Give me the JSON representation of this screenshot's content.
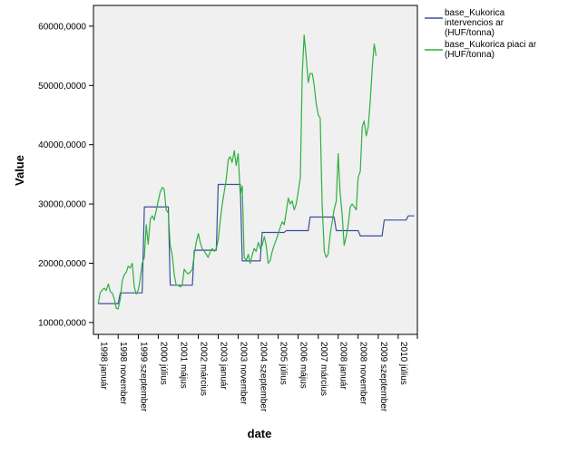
{
  "chart_data": {
    "type": "line",
    "xlabel": "date",
    "ylabel": "Value",
    "ylim": [
      8000000,
      63500000
    ],
    "y_ticks": [
      {
        "value": 10000000,
        "label": "10000,0000"
      },
      {
        "value": 20000000,
        "label": "20000,0000"
      },
      {
        "value": 30000000,
        "label": "30000,0000"
      },
      {
        "value": 40000000,
        "label": "40000,0000"
      },
      {
        "value": 50000000,
        "label": "50000,0000"
      },
      {
        "value": 60000000,
        "label": "60000,0000"
      }
    ],
    "x_ticks": [
      {
        "t": 1998.0,
        "label": "1998 január"
      },
      {
        "t": 1998.83,
        "label": "1998 november"
      },
      {
        "t": 1999.67,
        "label": "1999 szeptember"
      },
      {
        "t": 2000.5,
        "label": "2000 július"
      },
      {
        "t": 2001.33,
        "label": "2001 május"
      },
      {
        "t": 2002.17,
        "label": "2002 március"
      },
      {
        "t": 2003.0,
        "label": "2003 január"
      },
      {
        "t": 2003.83,
        "label": "2003 november"
      },
      {
        "t": 2004.67,
        "label": "2004 szeptember"
      },
      {
        "t": 2005.5,
        "label": "2005 július"
      },
      {
        "t": 2006.33,
        "label": "2006 május"
      },
      {
        "t": 2007.17,
        "label": "2007 március"
      },
      {
        "t": 2008.0,
        "label": "2008 január"
      },
      {
        "t": 2008.83,
        "label": "2008 november"
      },
      {
        "t": 2009.67,
        "label": "2009 szeptember"
      },
      {
        "t": 2010.5,
        "label": "2010 július"
      }
    ],
    "xlim_t": [
      1997.8,
      2011.3
    ],
    "extra_tick_t": 2011.3,
    "legend_position": "right",
    "series": [
      {
        "name": "base_Kukorica intervencios ar (HUF/tonna)",
        "color": "#3a4f9c",
        "step": true,
        "points": [
          [
            1998.0,
            13200000
          ],
          [
            1998.83,
            13200000
          ],
          [
            1998.92,
            15000000
          ],
          [
            1999.83,
            15000000
          ],
          [
            1999.92,
            29500000
          ],
          [
            2000.92,
            29500000
          ],
          [
            2001.0,
            16300000
          ],
          [
            2001.92,
            16300000
          ],
          [
            2002.0,
            22200000
          ],
          [
            2002.92,
            22200000
          ],
          [
            2003.0,
            33300000
          ],
          [
            2003.92,
            33300000
          ],
          [
            2004.0,
            20400000
          ],
          [
            2004.75,
            20400000
          ],
          [
            2004.83,
            25200000
          ],
          [
            2005.75,
            25200000
          ],
          [
            2005.83,
            25500000
          ],
          [
            2006.75,
            25500000
          ],
          [
            2006.83,
            27800000
          ],
          [
            2007.83,
            27800000
          ],
          [
            2007.92,
            25500000
          ],
          [
            2008.83,
            25500000
          ],
          [
            2008.92,
            24600000
          ],
          [
            2009.83,
            24600000
          ],
          [
            2009.92,
            27300000
          ],
          [
            2010.83,
            27300000
          ],
          [
            2010.92,
            28000000
          ],
          [
            2011.17,
            28000000
          ]
        ]
      },
      {
        "name": "base_Kukorica piaci ar (HUF/tonna)",
        "color": "#2db040",
        "step": false,
        "points": [
          [
            1998.0,
            13200000
          ],
          [
            1998.08,
            15000000
          ],
          [
            1998.17,
            15500000
          ],
          [
            1998.25,
            15800000
          ],
          [
            1998.33,
            15400000
          ],
          [
            1998.42,
            16500000
          ],
          [
            1998.5,
            15200000
          ],
          [
            1998.58,
            15000000
          ],
          [
            1998.67,
            14000000
          ],
          [
            1998.75,
            12400000
          ],
          [
            1998.83,
            12300000
          ],
          [
            1998.92,
            14000000
          ],
          [
            1999.0,
            17000000
          ],
          [
            1999.08,
            18000000
          ],
          [
            1999.17,
            18500000
          ],
          [
            1999.25,
            19500000
          ],
          [
            1999.33,
            19200000
          ],
          [
            1999.42,
            20000000
          ],
          [
            1999.5,
            16000000
          ],
          [
            1999.58,
            14800000
          ],
          [
            1999.67,
            15500000
          ],
          [
            1999.75,
            17500000
          ],
          [
            1999.83,
            20000000
          ],
          [
            1999.92,
            21000000
          ],
          [
            2000.0,
            26500000
          ],
          [
            2000.08,
            23200000
          ],
          [
            2000.17,
            27500000
          ],
          [
            2000.25,
            28000000
          ],
          [
            2000.33,
            27300000
          ],
          [
            2000.42,
            29000000
          ],
          [
            2000.5,
            30500000
          ],
          [
            2000.58,
            32000000
          ],
          [
            2000.67,
            32800000
          ],
          [
            2000.75,
            32500000
          ],
          [
            2000.83,
            29000000
          ],
          [
            2000.92,
            28500000
          ],
          [
            2001.0,
            23000000
          ],
          [
            2001.08,
            21500000
          ],
          [
            2001.17,
            18000000
          ],
          [
            2001.25,
            16300000
          ],
          [
            2001.33,
            16300000
          ],
          [
            2001.42,
            16000000
          ],
          [
            2001.5,
            16300000
          ],
          [
            2001.58,
            19000000
          ],
          [
            2001.67,
            18500000
          ],
          [
            2001.75,
            18200000
          ],
          [
            2001.83,
            18500000
          ],
          [
            2001.92,
            19000000
          ],
          [
            2002.0,
            21500000
          ],
          [
            2002.08,
            23500000
          ],
          [
            2002.17,
            25000000
          ],
          [
            2002.25,
            23500000
          ],
          [
            2002.33,
            22500000
          ],
          [
            2002.42,
            22000000
          ],
          [
            2002.5,
            21500000
          ],
          [
            2002.58,
            21000000
          ],
          [
            2002.67,
            22000000
          ],
          [
            2002.75,
            22500000
          ],
          [
            2002.83,
            22000000
          ],
          [
            2002.92,
            22500000
          ],
          [
            2003.0,
            24000000
          ],
          [
            2003.08,
            27000000
          ],
          [
            2003.17,
            30000000
          ],
          [
            2003.25,
            32000000
          ],
          [
            2003.33,
            34000000
          ],
          [
            2003.42,
            37500000
          ],
          [
            2003.5,
            38000000
          ],
          [
            2003.58,
            37000000
          ],
          [
            2003.67,
            39000000
          ],
          [
            2003.75,
            36500000
          ],
          [
            2003.83,
            38500000
          ],
          [
            2003.92,
            31500000
          ],
          [
            2004.0,
            33000000
          ],
          [
            2004.08,
            21000000
          ],
          [
            2004.17,
            20500000
          ],
          [
            2004.25,
            21500000
          ],
          [
            2004.33,
            20000000
          ],
          [
            2004.42,
            21500000
          ],
          [
            2004.5,
            22500000
          ],
          [
            2004.58,
            22000000
          ],
          [
            2004.67,
            23500000
          ],
          [
            2004.75,
            22500000
          ],
          [
            2004.83,
            23000000
          ],
          [
            2004.92,
            24500000
          ],
          [
            2005.0,
            23000000
          ],
          [
            2005.08,
            20000000
          ],
          [
            2005.17,
            20500000
          ],
          [
            2005.25,
            22000000
          ],
          [
            2005.33,
            23000000
          ],
          [
            2005.42,
            24000000
          ],
          [
            2005.5,
            25000000
          ],
          [
            2005.58,
            26000000
          ],
          [
            2005.67,
            27000000
          ],
          [
            2005.75,
            26500000
          ],
          [
            2005.83,
            28500000
          ],
          [
            2005.92,
            31000000
          ],
          [
            2006.0,
            30000000
          ],
          [
            2006.08,
            30500000
          ],
          [
            2006.17,
            29000000
          ],
          [
            2006.25,
            30000000
          ],
          [
            2006.33,
            32000000
          ],
          [
            2006.42,
            34500000
          ],
          [
            2006.5,
            52000000
          ],
          [
            2006.58,
            58500000
          ],
          [
            2006.67,
            54500000
          ],
          [
            2006.75,
            50500000
          ],
          [
            2006.83,
            52000000
          ],
          [
            2006.92,
            52000000
          ],
          [
            2007.0,
            50000000
          ],
          [
            2007.08,
            47000000
          ],
          [
            2007.17,
            45000000
          ],
          [
            2007.25,
            44500000
          ],
          [
            2007.33,
            30000000
          ],
          [
            2007.42,
            22000000
          ],
          [
            2007.5,
            21000000
          ],
          [
            2007.58,
            21500000
          ],
          [
            2007.67,
            25000000
          ],
          [
            2007.75,
            27000000
          ],
          [
            2007.83,
            29000000
          ],
          [
            2007.92,
            30500000
          ],
          [
            2008.0,
            38500000
          ],
          [
            2008.08,
            32000000
          ],
          [
            2008.17,
            28000000
          ],
          [
            2008.25,
            23000000
          ],
          [
            2008.33,
            24500000
          ],
          [
            2008.42,
            26500000
          ],
          [
            2008.5,
            29500000
          ],
          [
            2008.58,
            30000000
          ],
          [
            2008.67,
            29500000
          ],
          [
            2008.75,
            29000000
          ],
          [
            2008.83,
            34500000
          ],
          [
            2008.92,
            35500000
          ],
          [
            2009.0,
            43000000
          ],
          [
            2009.08,
            44000000
          ],
          [
            2009.17,
            41500000
          ],
          [
            2009.25,
            43000000
          ],
          [
            2009.33,
            47000000
          ],
          [
            2009.42,
            53000000
          ],
          [
            2009.5,
            57000000
          ],
          [
            2009.58,
            55000000
          ]
        ]
      }
    ]
  }
}
